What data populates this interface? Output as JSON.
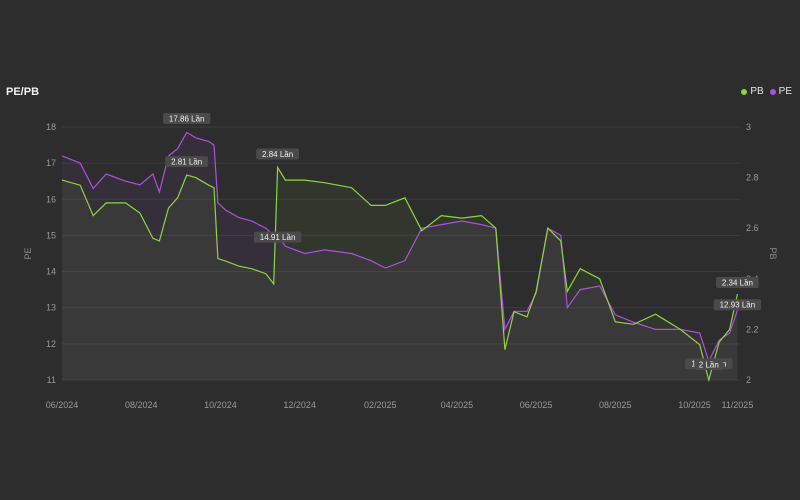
{
  "chart_data": {
    "type": "line",
    "title": "PE/PB",
    "legend": [
      "PB",
      "PE"
    ],
    "legend_placement": "top-right",
    "ylabel_left": "PE",
    "ylabel_right": "PB",
    "x_ticks": [
      "06/2024",
      "08/2024",
      "10/2024",
      "12/2024",
      "02/2025",
      "04/2025",
      "06/2025",
      "08/2025",
      "10/2025",
      "11/2025"
    ],
    "y_left_ticks": [
      11,
      12,
      13,
      14,
      15,
      16,
      17,
      18
    ],
    "y_right_ticks": [
      2,
      2.2,
      2.4,
      2.6,
      2.8,
      3
    ],
    "ylim_left": [
      11,
      18
    ],
    "ylim_right": [
      2,
      3
    ],
    "grid": true,
    "series": [
      {
        "name": "PE",
        "axis": "left",
        "color": "#b04fe0",
        "points": [
          [
            "2024-06-01",
            17.2
          ],
          [
            "2024-06-15",
            17.0
          ],
          [
            "2024-06-25",
            16.3
          ],
          [
            "2024-07-05",
            16.7
          ],
          [
            "2024-07-20",
            16.5
          ],
          [
            "2024-07-31",
            16.4
          ],
          [
            "2024-08-10",
            16.7
          ],
          [
            "2024-08-15",
            16.2
          ],
          [
            "2024-08-22",
            17.2
          ],
          [
            "2024-08-29",
            17.4
          ],
          [
            "2024-09-05",
            17.85
          ],
          [
            "2024-09-12",
            17.7
          ],
          [
            "2024-09-22",
            17.6
          ],
          [
            "2024-09-26",
            17.5
          ],
          [
            "2024-09-29",
            15.9
          ],
          [
            "2024-10-05",
            15.7
          ],
          [
            "2024-10-15",
            15.5
          ],
          [
            "2024-10-25",
            15.4
          ],
          [
            "2024-11-05",
            15.2
          ],
          [
            "2024-11-11",
            15.0
          ],
          [
            "2024-11-14",
            15.0
          ],
          [
            "2024-11-20",
            14.7
          ],
          [
            "2024-12-05",
            14.5
          ],
          [
            "2024-12-20",
            14.6
          ],
          [
            "2025-01-10",
            14.5
          ],
          [
            "2025-01-25",
            14.3
          ],
          [
            "2025-02-05",
            14.1
          ],
          [
            "2025-02-20",
            14.3
          ],
          [
            "2025-03-05",
            15.2
          ],
          [
            "2025-03-20",
            15.3
          ],
          [
            "2025-04-05",
            15.4
          ],
          [
            "2025-04-20",
            15.3
          ],
          [
            "2025-05-01",
            15.2
          ],
          [
            "2025-05-08",
            12.4
          ],
          [
            "2025-05-15",
            12.9
          ],
          [
            "2025-05-25",
            12.9
          ],
          [
            "2025-06-01",
            13.4
          ],
          [
            "2025-06-10",
            15.2
          ],
          [
            "2025-06-20",
            15.0
          ],
          [
            "2025-06-25",
            13.0
          ],
          [
            "2025-07-05",
            13.5
          ],
          [
            "2025-07-20",
            13.6
          ],
          [
            "2025-08-01",
            12.8
          ],
          [
            "2025-08-15",
            12.6
          ],
          [
            "2025-09-01",
            12.4
          ],
          [
            "2025-09-20",
            12.4
          ],
          [
            "2025-10-05",
            12.3
          ],
          [
            "2025-10-12",
            11.52
          ],
          [
            "2025-10-20",
            12.1
          ],
          [
            "2025-10-28",
            12.3
          ],
          [
            "2025-11-03",
            12.93
          ]
        ]
      },
      {
        "name": "PB",
        "axis": "right",
        "color": "#8cd641",
        "points": [
          [
            "2024-06-01",
            2.79
          ],
          [
            "2024-06-15",
            2.77
          ],
          [
            "2024-06-25",
            2.65
          ],
          [
            "2024-07-05",
            2.7
          ],
          [
            "2024-07-20",
            2.7
          ],
          [
            "2024-07-31",
            2.66
          ],
          [
            "2024-08-10",
            2.56
          ],
          [
            "2024-08-15",
            2.55
          ],
          [
            "2024-08-22",
            2.68
          ],
          [
            "2024-08-29",
            2.72
          ],
          [
            "2024-09-05",
            2.81
          ],
          [
            "2024-09-12",
            2.8
          ],
          [
            "2024-09-22",
            2.77
          ],
          [
            "2024-09-26",
            2.76
          ],
          [
            "2024-09-29",
            2.48
          ],
          [
            "2024-10-05",
            2.47
          ],
          [
            "2024-10-15",
            2.45
          ],
          [
            "2024-10-25",
            2.44
          ],
          [
            "2024-11-05",
            2.42
          ],
          [
            "2024-11-11",
            2.38
          ],
          [
            "2024-11-14",
            2.84
          ],
          [
            "2024-11-20",
            2.79
          ],
          [
            "2024-12-05",
            2.79
          ],
          [
            "2024-12-20",
            2.78
          ],
          [
            "2025-01-10",
            2.76
          ],
          [
            "2025-01-25",
            2.69
          ],
          [
            "2025-02-05",
            2.69
          ],
          [
            "2025-02-20",
            2.72
          ],
          [
            "2025-03-05",
            2.59
          ],
          [
            "2025-03-20",
            2.65
          ],
          [
            "2025-04-05",
            2.64
          ],
          [
            "2025-04-20",
            2.65
          ],
          [
            "2025-05-01",
            2.6
          ],
          [
            "2025-05-08",
            2.12
          ],
          [
            "2025-05-15",
            2.27
          ],
          [
            "2025-05-25",
            2.25
          ],
          [
            "2025-06-01",
            2.35
          ],
          [
            "2025-06-10",
            2.6
          ],
          [
            "2025-06-20",
            2.55
          ],
          [
            "2025-06-25",
            2.35
          ],
          [
            "2025-07-05",
            2.44
          ],
          [
            "2025-07-20",
            2.4
          ],
          [
            "2025-08-01",
            2.23
          ],
          [
            "2025-08-15",
            2.22
          ],
          [
            "2025-09-01",
            2.26
          ],
          [
            "2025-09-20",
            2.2
          ],
          [
            "2025-10-05",
            2.14
          ],
          [
            "2025-10-12",
            2.0
          ],
          [
            "2025-10-20",
            2.15
          ],
          [
            "2025-10-28",
            2.2
          ],
          [
            "2025-11-03",
            2.34
          ]
        ]
      }
    ],
    "callouts": [
      {
        "label": "17.86 Lần",
        "series": "PE",
        "date": "2024-09-05",
        "value": 17.86
      },
      {
        "label": "2.81 Lần",
        "series": "PB",
        "date": "2024-09-05",
        "value": 2.81
      },
      {
        "label": "2.84 Lần",
        "series": "PB",
        "date": "2024-11-14",
        "value": 2.84
      },
      {
        "label": "14.91 Lần",
        "series": "PE",
        "date": "2024-11-14",
        "value": 14.91
      },
      {
        "label": "2.34 Lần",
        "series": "PB",
        "date": "2025-11-03",
        "value": 2.34
      },
      {
        "label": "12.93 Lần",
        "series": "PE",
        "date": "2025-11-03",
        "value": 12.93
      },
      {
        "label": "11.52 Lần",
        "series": "PE",
        "date": "2025-10-12",
        "value": 11.52
      },
      {
        "label": "2 Lần",
        "series": "PB",
        "date": "2025-10-12",
        "value": 2
      }
    ]
  }
}
